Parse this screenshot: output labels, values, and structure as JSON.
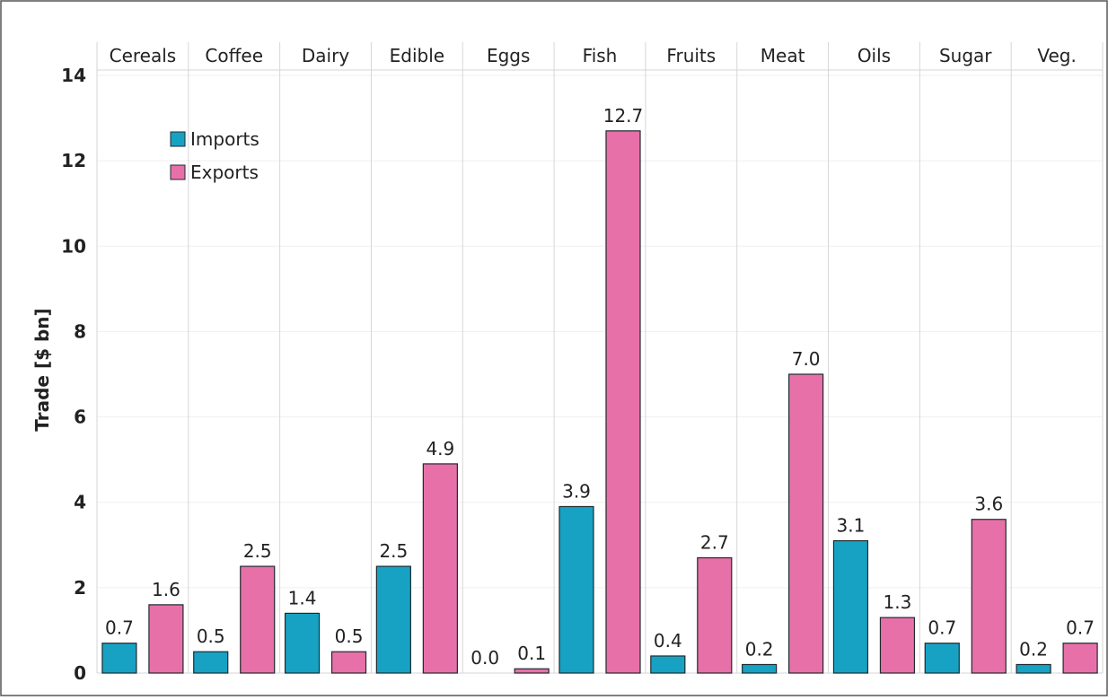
{
  "chart_data": {
    "type": "bar",
    "ylabel": "Trade [$ bn]",
    "xlabel": "",
    "ylim": [
      0,
      14
    ],
    "yticks": [
      0,
      2,
      4,
      6,
      8,
      10,
      12,
      14
    ],
    "grid": true,
    "legend_position": "top-left",
    "categories": [
      "Cereals",
      "Coffee",
      "Dairy",
      "Edible",
      "Eggs",
      "Fish",
      "Fruits",
      "Meat",
      "Oils",
      "Sugar",
      "Veg."
    ],
    "series": [
      {
        "name": "Imports",
        "color": "#17a2c4",
        "values": [
          0.7,
          0.5,
          1.4,
          2.5,
          0.0,
          3.9,
          0.4,
          0.2,
          3.1,
          0.7,
          0.2
        ],
        "labels": [
          "0.7",
          "0.5",
          "1.4",
          "2.5",
          "0.0",
          "3.9",
          "0.4",
          "0.2",
          "3.1",
          "0.7",
          "0.2"
        ]
      },
      {
        "name": "Exports",
        "color": "#e870a9",
        "values": [
          1.6,
          2.5,
          0.5,
          4.9,
          0.1,
          12.7,
          2.7,
          7.0,
          1.3,
          3.6,
          0.7
        ],
        "labels": [
          "1.6",
          "2.5",
          "0.5",
          "4.9",
          "0.1",
          "12.7",
          "2.7",
          "7.0",
          "1.3",
          "3.6",
          "0.7"
        ]
      }
    ]
  }
}
